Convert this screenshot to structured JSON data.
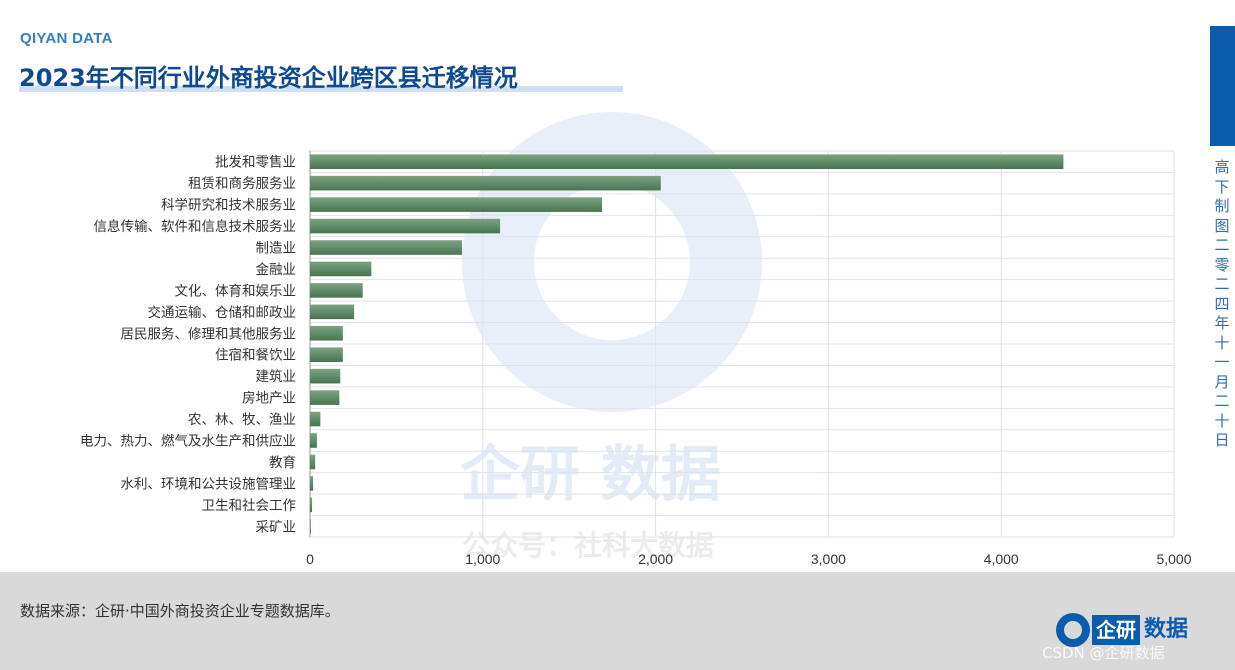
{
  "brand": "QIYAN DATA",
  "side_text": "高下制图 二零二四年十一月二十日",
  "footer": {
    "source": "数据来源：企研·中国外商投资企业专题数据库。",
    "logo_box": "企研",
    "logo_tail": "数据",
    "credit": "CSDN @企研数据"
  },
  "watermark": {
    "brand": "企研 数据",
    "account": "公众号：社科大数据"
  },
  "colors": {
    "bar": "#5f8a67",
    "title": "#0d4a91",
    "accent": "#0b5cad"
  },
  "chart_data": {
    "type": "bar",
    "orientation": "horizontal",
    "title": "2023年不同行业外商投资企业跨区县迁移情况",
    "xlabel": "",
    "ylabel": "",
    "xlim": [
      0,
      5000
    ],
    "xticks": [
      0,
      1000,
      2000,
      3000,
      4000,
      5000
    ],
    "xtick_labels": [
      "0",
      "1,000",
      "2,000",
      "3,000",
      "4,000",
      "5,000"
    ],
    "grid": true,
    "categories": [
      "批发和零售业",
      "租赁和商务服务业",
      "科学研究和技术服务业",
      "信息传输、软件和信息技术服务业",
      "制造业",
      "金融业",
      "文化、体育和娱乐业",
      "交通运输、仓储和邮政业",
      "居民服务、修理和其他服务业",
      "住宿和餐饮业",
      "建筑业",
      "房地产业",
      "农、林、牧、渔业",
      "电力、热力、燃气及水生产和供应业",
      "教育",
      "水利、环境和公共设施管理业",
      "卫生和社会工作",
      "采矿业"
    ],
    "values": [
      4360,
      2030,
      1690,
      1100,
      880,
      355,
      305,
      255,
      190,
      190,
      175,
      170,
      60,
      40,
      30,
      18,
      12,
      5
    ]
  }
}
